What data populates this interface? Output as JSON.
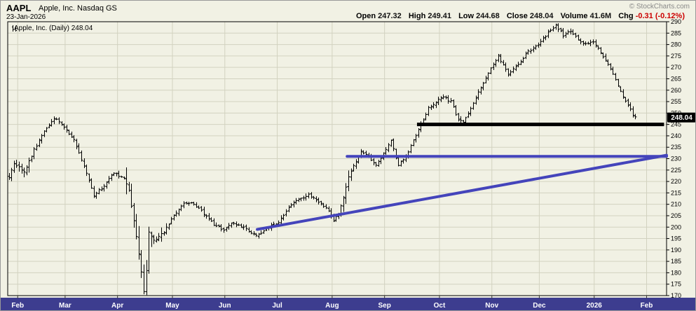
{
  "header": {
    "symbol": "AAPL",
    "company": "Apple, Inc. Nasdaq GS",
    "date": "23-Jan-2026",
    "copyright": "© StockCharts.com",
    "quote": {
      "open_label": "Open",
      "open_value": "247.32",
      "high_label": "High",
      "high_value": "249.41",
      "low_label": "Low",
      "low_value": "244.68",
      "close_label": "Close",
      "close_value": "248.04",
      "volume_label": "Volume",
      "volume_value": "41.6M",
      "chg_label": "Chg",
      "chg_value": "-0.31 (-0.12%)"
    }
  },
  "plot_label": "Apple, Inc. (Daily) 248.04",
  "price_tag": "248.04",
  "colors": {
    "background": "#F1F1E4",
    "grid": "#D2D2C0",
    "plot_border": "#000000",
    "bar": "#000000",
    "axis_text": "#000000",
    "band": "#3D3D8F",
    "band_text": "#FFFFFF",
    "support_line": "#000000",
    "trendline": "#4444BB",
    "negative": "#CC0000",
    "tag_bg": "#000000",
    "tag_text": "#FFFFFF"
  },
  "chart_data": {
    "type": "ohlc-bar",
    "title": "AAPL Apple, Inc. (Daily)",
    "symbol": "AAPL",
    "timeframe": "Daily",
    "last_close": 248.04,
    "y_min": 170,
    "y_max": 290,
    "y_step": 5,
    "y_ticks": [
      170,
      175,
      180,
      185,
      190,
      195,
      200,
      205,
      210,
      215,
      220,
      225,
      230,
      235,
      240,
      245,
      250,
      255,
      260,
      265,
      270,
      275,
      280,
      285,
      290
    ],
    "slots": 264,
    "last_slot": 251,
    "months": [
      {
        "label": "Feb",
        "slot": 4
      },
      {
        "label": "Mar",
        "slot": 23
      },
      {
        "label": "Apr",
        "slot": 44
      },
      {
        "label": "May",
        "slot": 66
      },
      {
        "label": "Jun",
        "slot": 87
      },
      {
        "label": "Jul",
        "slot": 108
      },
      {
        "label": "Aug",
        "slot": 130
      },
      {
        "label": "Sep",
        "slot": 151
      },
      {
        "label": "Oct",
        "slot": 173
      },
      {
        "label": "Nov",
        "slot": 194
      },
      {
        "label": "Dec",
        "slot": 213
      },
      {
        "label": "2026",
        "slot": 235
      },
      {
        "label": "Feb",
        "slot": 256
      }
    ],
    "close_waypoints": [
      [
        0,
        222
      ],
      [
        2,
        228
      ],
      [
        6,
        224
      ],
      [
        10,
        234
      ],
      [
        14,
        242
      ],
      [
        18,
        248
      ],
      [
        22,
        244
      ],
      [
        26,
        238
      ],
      [
        30,
        227
      ],
      [
        34,
        214
      ],
      [
        38,
        218
      ],
      [
        42,
        224
      ],
      [
        46,
        221
      ],
      [
        48,
        216
      ],
      [
        50,
        203
      ],
      [
        52,
        188
      ],
      [
        54,
        172
      ],
      [
        55,
        181
      ],
      [
        56,
        198
      ],
      [
        58,
        194
      ],
      [
        62,
        198
      ],
      [
        66,
        205
      ],
      [
        70,
        211
      ],
      [
        74,
        210
      ],
      [
        78,
        206
      ],
      [
        82,
        201
      ],
      [
        86,
        199
      ],
      [
        90,
        202
      ],
      [
        94,
        200
      ],
      [
        98,
        197
      ],
      [
        100,
        196.5
      ],
      [
        104,
        200
      ],
      [
        108,
        202
      ],
      [
        112,
        209
      ],
      [
        116,
        212
      ],
      [
        120,
        214
      ],
      [
        124,
        211
      ],
      [
        128,
        207
      ],
      [
        130,
        203
      ],
      [
        132,
        206
      ],
      [
        134,
        213
      ],
      [
        136,
        222
      ],
      [
        139,
        229
      ],
      [
        141,
        233
      ],
      [
        144,
        231
      ],
      [
        147,
        227
      ],
      [
        150,
        232
      ],
      [
        153,
        238
      ],
      [
        156,
        227
      ],
      [
        159,
        231
      ],
      [
        162,
        238
      ],
      [
        165,
        245
      ],
      [
        168,
        252
      ],
      [
        171,
        255
      ],
      [
        174,
        257
      ],
      [
        177,
        255
      ],
      [
        180,
        247
      ],
      [
        182,
        246
      ],
      [
        184,
        250
      ],
      [
        187,
        257
      ],
      [
        190,
        263
      ],
      [
        193,
        270
      ],
      [
        196,
        275
      ],
      [
        198,
        271
      ],
      [
        200,
        267
      ],
      [
        204,
        271
      ],
      [
        208,
        277
      ],
      [
        212,
        280
      ],
      [
        216,
        285
      ],
      [
        219,
        288.5
      ],
      [
        222,
        284
      ],
      [
        225,
        286
      ],
      [
        228,
        282
      ],
      [
        231,
        280
      ],
      [
        234,
        281
      ],
      [
        236,
        278
      ],
      [
        239,
        273
      ],
      [
        242,
        267
      ],
      [
        244,
        262
      ],
      [
        246,
        257
      ],
      [
        248,
        253
      ],
      [
        250,
        249.5
      ],
      [
        251,
        248.04
      ]
    ],
    "volatility_zones": [
      {
        "from": 0,
        "to": 8,
        "extra": 1.5
      },
      {
        "from": 47,
        "to": 57,
        "extra": 5
      },
      {
        "from": 58,
        "to": 63,
        "extra": 2
      },
      {
        "from": 133,
        "to": 137,
        "extra": 2
      }
    ],
    "annotations": {
      "support_line": {
        "type": "horizontal",
        "price": 245,
        "from_slot": 164,
        "to_slot": 263,
        "width": 5
      },
      "triangle_top": {
        "type": "horizontal",
        "price": 231,
        "from_slot": 136,
        "to_slot": 264,
        "width": 4
      },
      "triangle_rising": {
        "type": "segment",
        "from_slot": 100,
        "from_price": 199,
        "to_slot": 264,
        "to_price": 231.5,
        "width": 4
      }
    }
  }
}
